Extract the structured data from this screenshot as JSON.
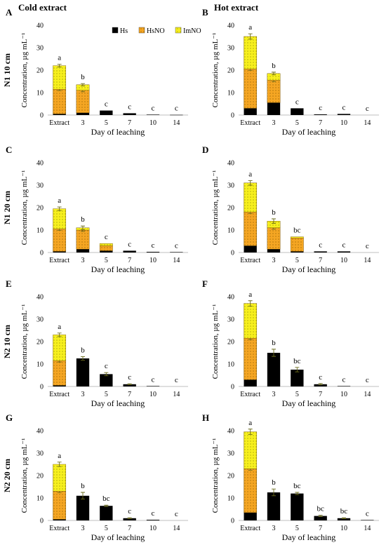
{
  "colors": {
    "Hs": "#000000",
    "HsNO": "#f5a623",
    "ImNO": "#f7f01e",
    "axis": "#bfbfbf",
    "error": "#6b6b1a"
  },
  "column_titles": [
    "Cold extract",
    "Hot extract"
  ],
  "row_labels": [
    "N1 10 cm",
    "N1 20 cm",
    "N2 10 cm",
    "N2 20 cm"
  ],
  "chart_data": [
    {
      "panel": "A",
      "type": "bar",
      "stacked": true,
      "categories": [
        "Extract",
        "3",
        "5",
        "7",
        "10",
        "14"
      ],
      "xlabel": "Day of leaching",
      "ylabel": "Concentration, µg mL⁻¹",
      "ylim": [
        0,
        40
      ],
      "yticks": [
        0,
        10,
        20,
        30,
        40
      ],
      "legend": [
        "Hs",
        "HsNO",
        "ImNO"
      ],
      "legend_position": "top",
      "series": [
        {
          "name": "Hs",
          "values": [
            0.5,
            1,
            2,
            0.8,
            0.2,
            0.1
          ]
        },
        {
          "name": "HsNO",
          "values": [
            11,
            10,
            0,
            0,
            0,
            0
          ]
        },
        {
          "name": "ImNO",
          "values": [
            10.5,
            2.5,
            0,
            0,
            0,
            0
          ]
        }
      ],
      "totals": [
        22,
        13.5,
        2,
        0.8,
        0.2,
        0.1
      ],
      "errors": [
        0.6,
        0.5,
        0,
        0,
        0,
        0
      ],
      "letters": [
        "a",
        "b",
        "c",
        "c",
        "c",
        "c"
      ]
    },
    {
      "panel": "B",
      "type": "bar",
      "stacked": true,
      "categories": [
        "Extract",
        "3",
        "5",
        "7",
        "10",
        "14"
      ],
      "xlabel": "Day of leaching",
      "ylabel": "Concentration, µg mL⁻¹",
      "ylim": [
        0,
        40
      ],
      "yticks": [
        0,
        10,
        20,
        30,
        40
      ],
      "series": [
        {
          "name": "Hs",
          "values": [
            3,
            5.5,
            3,
            0.3,
            0.5,
            0
          ]
        },
        {
          "name": "HsNO",
          "values": [
            17.5,
            10,
            0,
            0,
            0,
            0
          ]
        },
        {
          "name": "ImNO",
          "values": [
            14.5,
            3,
            0,
            0,
            0,
            0
          ]
        }
      ],
      "totals": [
        35,
        18.5,
        3,
        0.3,
        0.5,
        0
      ],
      "errors": [
        1.2,
        0.6,
        0,
        0,
        0,
        0
      ],
      "letters": [
        "a",
        "b",
        "c",
        "c",
        "c",
        "c"
      ]
    },
    {
      "panel": "C",
      "type": "bar",
      "stacked": true,
      "categories": [
        "Extract",
        "3",
        "5",
        "7",
        "10",
        "14"
      ],
      "xlabel": "Day of leaching",
      "ylabel": "Concentration, µg mL⁻¹",
      "ylim": [
        0,
        40
      ],
      "yticks": [
        0,
        10,
        20,
        30,
        40
      ],
      "series": [
        {
          "name": "Hs",
          "values": [
            0.5,
            1.5,
            0.8,
            0.8,
            0.3,
            0.2
          ]
        },
        {
          "name": "HsNO",
          "values": [
            10,
            8.5,
            2.2,
            0,
            0,
            0
          ]
        },
        {
          "name": "ImNO",
          "values": [
            9,
            1,
            1,
            0,
            0,
            0
          ]
        }
      ],
      "totals": [
        19.5,
        11,
        4,
        0.8,
        0.3,
        0.2
      ],
      "errors": [
        0.8,
        0.8,
        0,
        0,
        0,
        0
      ],
      "letters": [
        "a",
        "b",
        "c",
        "c",
        "c",
        "c"
      ]
    },
    {
      "panel": "D",
      "type": "bar",
      "stacked": true,
      "categories": [
        "Extract",
        "3",
        "5",
        "7",
        "10",
        "14"
      ],
      "xlabel": "Day of leaching",
      "ylabel": "Concentration, µg mL⁻¹",
      "ylim": [
        0,
        40
      ],
      "yticks": [
        0,
        10,
        20,
        30,
        40
      ],
      "series": [
        {
          "name": "Hs",
          "values": [
            3,
            1.5,
            0.5,
            0.5,
            0.5,
            0
          ]
        },
        {
          "name": "HsNO",
          "values": [
            15,
            9.5,
            6,
            0,
            0,
            0
          ]
        },
        {
          "name": "ImNO",
          "values": [
            13,
            3,
            0.5,
            0,
            0,
            0
          ]
        }
      ],
      "totals": [
        31,
        14,
        7,
        0.5,
        0.5,
        0
      ],
      "errors": [
        1,
        1,
        0,
        0,
        0,
        0
      ],
      "letters": [
        "a",
        "b",
        "bc",
        "c",
        "c",
        "c"
      ]
    },
    {
      "panel": "E",
      "type": "bar",
      "stacked": true,
      "categories": [
        "Extract",
        "3",
        "5",
        "7",
        "10",
        "14"
      ],
      "xlabel": "Day of leaching",
      "ylabel": "Concentration, µg mL⁻¹",
      "ylim": [
        0,
        40
      ],
      "yticks": [
        0,
        10,
        20,
        30,
        40
      ],
      "series": [
        {
          "name": "Hs",
          "values": [
            0.5,
            12.5,
            5.5,
            1,
            0.2,
            0
          ]
        },
        {
          "name": "HsNO",
          "values": [
            11,
            0,
            0,
            0,
            0,
            0
          ]
        },
        {
          "name": "ImNO",
          "values": [
            11.5,
            0,
            0,
            0,
            0,
            0
          ]
        }
      ],
      "totals": [
        23,
        12.5,
        5.5,
        1,
        0.2,
        0
      ],
      "errors": [
        0.8,
        0.8,
        0.7,
        0.2,
        0,
        0
      ],
      "letters": [
        "a",
        "b",
        "c",
        "c",
        "c",
        "c"
      ]
    },
    {
      "panel": "F",
      "type": "bar",
      "stacked": true,
      "categories": [
        "Extract",
        "3",
        "5",
        "7",
        "10",
        "14"
      ],
      "xlabel": "Day of leaching",
      "ylabel": "Concentration, µg mL⁻¹",
      "ylim": [
        0,
        40
      ],
      "yticks": [
        0,
        10,
        20,
        30,
        40
      ],
      "series": [
        {
          "name": "Hs",
          "values": [
            3,
            15,
            7.5,
            1,
            0.2,
            0
          ]
        },
        {
          "name": "HsNO",
          "values": [
            18.5,
            0,
            0,
            0,
            0,
            0
          ]
        },
        {
          "name": "ImNO",
          "values": [
            15.5,
            0,
            0,
            0,
            0,
            0
          ]
        }
      ],
      "totals": [
        37,
        15,
        7.5,
        1,
        0.2,
        0
      ],
      "errors": [
        1.2,
        1.6,
        1,
        0.3,
        0,
        0
      ],
      "letters": [
        "a",
        "b",
        "bc",
        "c",
        "c",
        "c"
      ]
    },
    {
      "panel": "G",
      "type": "bar",
      "stacked": true,
      "categories": [
        "Extract",
        "3",
        "5",
        "7",
        "10",
        "14"
      ],
      "xlabel": "Day of leaching",
      "ylabel": "Concentration, µg mL⁻¹",
      "ylim": [
        0,
        40
      ],
      "yticks": [
        0,
        10,
        20,
        30,
        40
      ],
      "series": [
        {
          "name": "Hs",
          "values": [
            0.5,
            11,
            6.5,
            1,
            0.3,
            0
          ]
        },
        {
          "name": "HsNO",
          "values": [
            12.5,
            0,
            0,
            0,
            0,
            0
          ]
        },
        {
          "name": "ImNO",
          "values": [
            12,
            0,
            0,
            0,
            0,
            0
          ]
        }
      ],
      "totals": [
        25,
        11,
        6.5,
        1,
        0.3,
        0
      ],
      "errors": [
        1,
        1.5,
        0.3,
        0.2,
        0,
        0
      ],
      "letters": [
        "a",
        "b",
        "bc",
        "c",
        "c",
        "c"
      ]
    },
    {
      "panel": "H",
      "type": "bar",
      "stacked": true,
      "categories": [
        "Extract",
        "3",
        "5",
        "7",
        "10",
        "14"
      ],
      "xlabel": "Day of leaching",
      "ylabel": "Concentration, µg mL⁻¹",
      "ylim": [
        0,
        40
      ],
      "yticks": [
        0,
        10,
        20,
        30,
        40
      ],
      "series": [
        {
          "name": "Hs",
          "values": [
            3.5,
            12.5,
            12,
            2,
            1,
            0.2
          ]
        },
        {
          "name": "HsNO",
          "values": [
            19.5,
            0,
            0,
            0,
            0,
            0
          ]
        },
        {
          "name": "ImNO",
          "values": [
            16.5,
            0,
            0,
            0,
            0,
            0
          ]
        }
      ],
      "totals": [
        39.5,
        12.5,
        12,
        2,
        1,
        0.2
      ],
      "errors": [
        1.2,
        1.5,
        0.5,
        0.3,
        0.2,
        0
      ],
      "letters": [
        "a",
        "b",
        "bc",
        "bc",
        "bc",
        "c"
      ]
    }
  ]
}
